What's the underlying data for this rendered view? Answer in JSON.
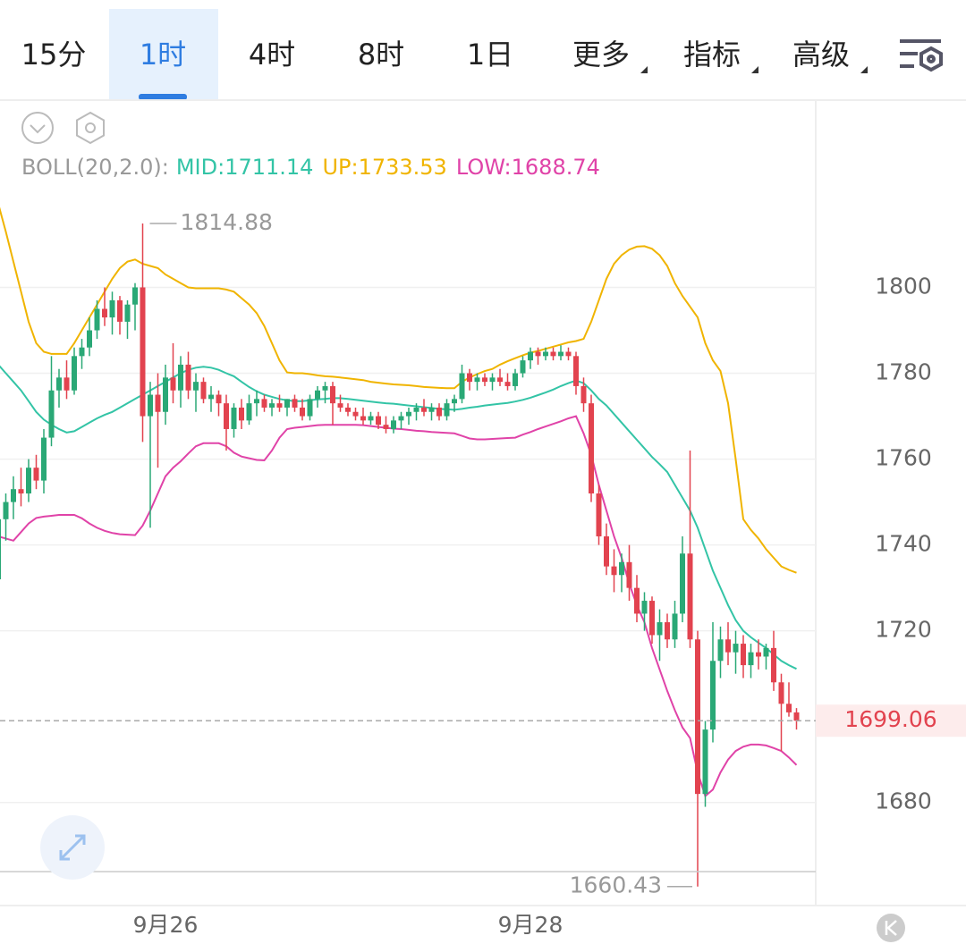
{
  "tabs": [
    "15分",
    "1时",
    "4时",
    "8时",
    "1日",
    "更多",
    "指标",
    "高级"
  ],
  "active_tab": 1,
  "chart_data": {
    "type": "candlestick",
    "indicator": "BOLL(20,2.0):",
    "categories": [
      null,
      null,
      null,
      null,
      null,
      null,
      null,
      null,
      null,
      null,
      null,
      null,
      null,
      null,
      null,
      null,
      null,
      null,
      null,
      null,
      null,
      null,
      "9月26",
      null,
      null,
      null,
      null,
      null,
      null,
      null,
      null,
      null,
      null,
      null,
      null,
      null,
      null,
      null,
      null,
      null,
      null,
      null,
      null,
      null,
      null,
      null,
      null,
      null,
      null,
      null,
      null,
      null,
      null,
      null,
      null,
      null,
      null,
      null,
      null,
      null,
      null,
      null,
      null,
      null,
      null,
      null,
      null,
      null,
      null,
      null,
      "9月28",
      null,
      null,
      null,
      null,
      null,
      null,
      null,
      null,
      null,
      null,
      null,
      null,
      null,
      null,
      null,
      null,
      null,
      null,
      null,
      null,
      null,
      null,
      null,
      null,
      null,
      null,
      null,
      null,
      null,
      null,
      null,
      null,
      null,
      null,
      null
    ],
    "open": [
      1732,
      1746,
      1750,
      1753,
      1752,
      1758,
      1755,
      1765,
      1776,
      1779,
      1776,
      1784,
      1786,
      1790,
      1795,
      1793,
      1797,
      1792,
      1796,
      1800,
      1770,
      1775,
      1771,
      1779,
      1776,
      1782,
      1776,
      1778,
      1774,
      1775,
      1773,
      1767,
      1772,
      1769,
      1773,
      1774,
      1772,
      1773,
      1772,
      1774,
      1772,
      1770,
      1774,
      1776,
      1777,
      1773,
      1772,
      1771,
      1770,
      1769,
      1770,
      1768,
      1767,
      1769,
      1770,
      1771,
      1772,
      1771,
      1772,
      1770,
      1773,
      1774,
      1780,
      1778,
      1779,
      1778,
      1779,
      1778,
      1777,
      1780,
      1783,
      1785,
      1784,
      1785,
      1784,
      1785,
      1784,
      1777,
      1773,
      1752,
      1742,
      1735,
      1733,
      1736,
      1730,
      1724,
      1727,
      1719,
      1722,
      1718,
      1724,
      1738,
      1718,
      1682,
      1697,
      1713,
      1718,
      1715,
      1717,
      1712,
      1715,
      1714,
      1716,
      1708,
      1703,
      1701
    ],
    "high": [
      1750,
      1752,
      1756,
      1758,
      1760,
      1761,
      1767,
      1784,
      1781,
      1783,
      1786,
      1788,
      1793,
      1797,
      1800,
      1799,
      1798,
      1797,
      1801,
      1814.88,
      1778,
      1780,
      1782,
      1787,
      1784,
      1785,
      1780,
      1779,
      1777,
      1776,
      1775,
      1773,
      1774,
      1775,
      1776,
      1775,
      1774,
      1775,
      1774,
      1775,
      1774,
      1775,
      1777,
      1778,
      1778,
      1775,
      1773,
      1772,
      1772,
      1771,
      1771,
      1770,
      1770,
      1771,
      1772,
      1773,
      1774,
      1773,
      1773,
      1774,
      1775,
      1782,
      1781,
      1780,
      1780,
      1780,
      1781,
      1780,
      1781,
      1784,
      1786,
      1786,
      1786,
      1786,
      1786.5,
      1786,
      1785,
      1779,
      1775,
      1754,
      1745,
      1739,
      1738,
      1740,
      1733,
      1729,
      1728,
      1725,
      1724,
      1727,
      1742,
      1762,
      1720,
      1699,
      1722,
      1721,
      1722,
      1720,
      1719,
      1717,
      1718,
      1717,
      1720,
      1710,
      1708,
      1702
    ],
    "low": [
      1728,
      1741,
      1746,
      1749,
      1750,
      1753,
      1752,
      1763,
      1772,
      1774,
      1775,
      1781,
      1784,
      1788,
      1791,
      1789,
      1789,
      1788,
      1790,
      1764,
      1744,
      1758,
      1768,
      1773,
      1772,
      1774,
      1771,
      1773,
      1771,
      1770,
      1762,
      1765,
      1767,
      1768,
      1770,
      1771,
      1770,
      1771,
      1770,
      1771,
      1769,
      1769,
      1772,
      1773,
      1768,
      1771,
      1770,
      1769,
      1768,
      1768,
      1767,
      1766,
      1766,
      1767,
      1768,
      1769,
      1770,
      1769,
      1769,
      1769,
      1771,
      1773,
      1776,
      1776,
      1777,
      1776,
      1777,
      1776,
      1776,
      1779,
      1781,
      1782,
      1783,
      1783,
      1783,
      1783,
      1775,
      1771,
      1750,
      1740,
      1733,
      1729,
      1729,
      1727,
      1722,
      1720,
      1717,
      1713,
      1716,
      1716,
      1722,
      1716,
      1660.43,
      1679,
      1694,
      1709,
      1712,
      1710,
      1709,
      1709,
      1711,
      1711,
      1706,
      1692,
      1700,
      1697
    ],
    "close": [
      1746,
      1750,
      1753,
      1752,
      1758,
      1755,
      1765,
      1776,
      1779,
      1776,
      1784,
      1786,
      1790,
      1795,
      1793,
      1797,
      1792,
      1796,
      1800,
      1770,
      1775,
      1771,
      1779,
      1776,
      1782,
      1776,
      1778,
      1774,
      1775,
      1773,
      1767,
      1772,
      1769,
      1773,
      1774,
      1772,
      1773,
      1772,
      1774,
      1772,
      1770,
      1774,
      1776,
      1777,
      1773,
      1772,
      1771,
      1770,
      1769,
      1770,
      1768,
      1767,
      1769,
      1770,
      1771,
      1772,
      1771,
      1772,
      1770,
      1773,
      1774,
      1780,
      1778,
      1779,
      1778,
      1779,
      1778,
      1777,
      1780,
      1783,
      1785,
      1784,
      1785,
      1784,
      1785,
      1784,
      1777,
      1773,
      1752,
      1742,
      1735,
      1733,
      1736,
      1730,
      1724,
      1727,
      1719,
      1722,
      1718,
      1724,
      1738,
      1718,
      1682,
      1697,
      1713,
      1718,
      1715,
      1717,
      1712,
      1715,
      1714,
      1716,
      1708,
      1703,
      1701,
      1699.06
    ],
    "up_color": "#2aa876",
    "down_color": "#e2434f",
    "series": [
      {
        "name": "MID:",
        "color": "#33c4a6",
        "values": [
          1782,
          1780,
          1778,
          1776,
          1773.5,
          1771,
          1769.2,
          1768,
          1767,
          1766.2,
          1766.5,
          1767.5,
          1768.5,
          1769.5,
          1770.3,
          1771,
          1772,
          1773,
          1774,
          1775,
          1776,
          1777,
          1778,
          1779,
          1780,
          1780.8,
          1781.3,
          1781.5,
          1781.3,
          1780.8,
          1780,
          1779.3,
          1778,
          1776.8,
          1775.8,
          1775,
          1774.5,
          1774,
          1773.7,
          1773.5,
          1773.5,
          1773.7,
          1773.9,
          1774,
          1774.2,
          1774.2,
          1774,
          1773.8,
          1773.6,
          1773.4,
          1773.2,
          1773,
          1772.9,
          1772.7,
          1772.5,
          1772.3,
          1772.1,
          1771.9,
          1771.7,
          1771.6,
          1771.5,
          1771.7,
          1772,
          1772.2,
          1772.5,
          1772.7,
          1772.9,
          1773.1,
          1773.4,
          1773.8,
          1774.3,
          1774.9,
          1775.5,
          1776.2,
          1777,
          1777.7,
          1778.3,
          1777.7,
          1776,
          1774,
          1772.5,
          1770.5,
          1768.5,
          1766.5,
          1764.5,
          1762.5,
          1760.5,
          1758.8,
          1757,
          1754,
          1751,
          1748,
          1744,
          1739,
          1734,
          1730,
          1726,
          1722.5,
          1720,
          1718.5,
          1717.2,
          1716,
          1714.5,
          1713,
          1712,
          1711.14
        ]
      },
      {
        "name": "UP:",
        "color": "#f0b400",
        "values": [
          1819.5,
          1813,
          1806,
          1799,
          1792,
          1787,
          1785,
          1784.5,
          1784.5,
          1784.5,
          1787,
          1790,
          1793,
          1796,
          1799,
          1802,
          1804.5,
          1806,
          1806.5,
          1805.5,
          1805,
          1804.5,
          1803,
          1802,
          1801,
          1800,
          1799.8,
          1799.8,
          1799.8,
          1799.8,
          1799.5,
          1799,
          1797.5,
          1796,
          1794,
          1791,
          1787,
          1783,
          1780.2,
          1780,
          1780,
          1779.8,
          1779.5,
          1779.3,
          1779.2,
          1779,
          1778.8,
          1778.6,
          1778.4,
          1778,
          1777.8,
          1777.6,
          1777.4,
          1777.3,
          1777.2,
          1777,
          1776.8,
          1776.7,
          1776.6,
          1776.5,
          1776.5,
          1778,
          1779,
          1779.8,
          1780.5,
          1781,
          1782,
          1782.8,
          1783.5,
          1784.2,
          1784.8,
          1785.2,
          1785.7,
          1786.2,
          1786.7,
          1787.2,
          1787.5,
          1788,
          1792,
          1797,
          1802,
          1805.5,
          1807.5,
          1808.8,
          1809.5,
          1809.6,
          1809,
          1807.5,
          1805,
          1801,
          1798,
          1795.5,
          1793,
          1787,
          1783,
          1780.5,
          1773,
          1760,
          1746,
          1743.5,
          1741.5,
          1739,
          1737,
          1735,
          1734.2,
          1733.53
        ]
      },
      {
        "name": "LOW:",
        "color": "#e043a8",
        "values": [
          1742,
          1741.5,
          1741,
          1743,
          1745,
          1746.3,
          1746.6,
          1746.8,
          1747,
          1747,
          1747,
          1746.2,
          1745,
          1744,
          1743.3,
          1742.8,
          1742.5,
          1742.4,
          1742.3,
          1744.5,
          1748,
          1752,
          1756,
          1758,
          1759.5,
          1761.3,
          1763,
          1763.7,
          1763.7,
          1763.7,
          1763,
          1761.5,
          1760.6,
          1760.2,
          1759.8,
          1759.7,
          1762,
          1765,
          1767,
          1767.3,
          1767.5,
          1767.7,
          1767.9,
          1768,
          1768,
          1768,
          1768,
          1768,
          1767.9,
          1767.7,
          1767.5,
          1767.3,
          1767.1,
          1767,
          1766.8,
          1766.6,
          1766.5,
          1766.3,
          1766.2,
          1766.1,
          1766,
          1765.4,
          1764.8,
          1764.6,
          1764.6,
          1764.7,
          1764.8,
          1764.9,
          1765,
          1765.7,
          1766.3,
          1767,
          1767.6,
          1768.2,
          1768.8,
          1769.5,
          1770,
          1766,
          1761,
          1754,
          1748,
          1742,
          1737,
          1731,
          1726,
          1722,
          1716,
          1711,
          1706,
          1701.5,
          1697.5,
          1695,
          1687,
          1681.5,
          1683,
          1687,
          1690,
          1692,
          1693,
          1693.5,
          1693.5,
          1693.3,
          1692.7,
          1692,
          1690.5,
          1688.74
        ]
      }
    ],
    "ylim": [
      1656,
      1843
    ],
    "yticks": [
      1680,
      1720,
      1740,
      1760,
      1780,
      1800
    ],
    "grid": true
  }
}
